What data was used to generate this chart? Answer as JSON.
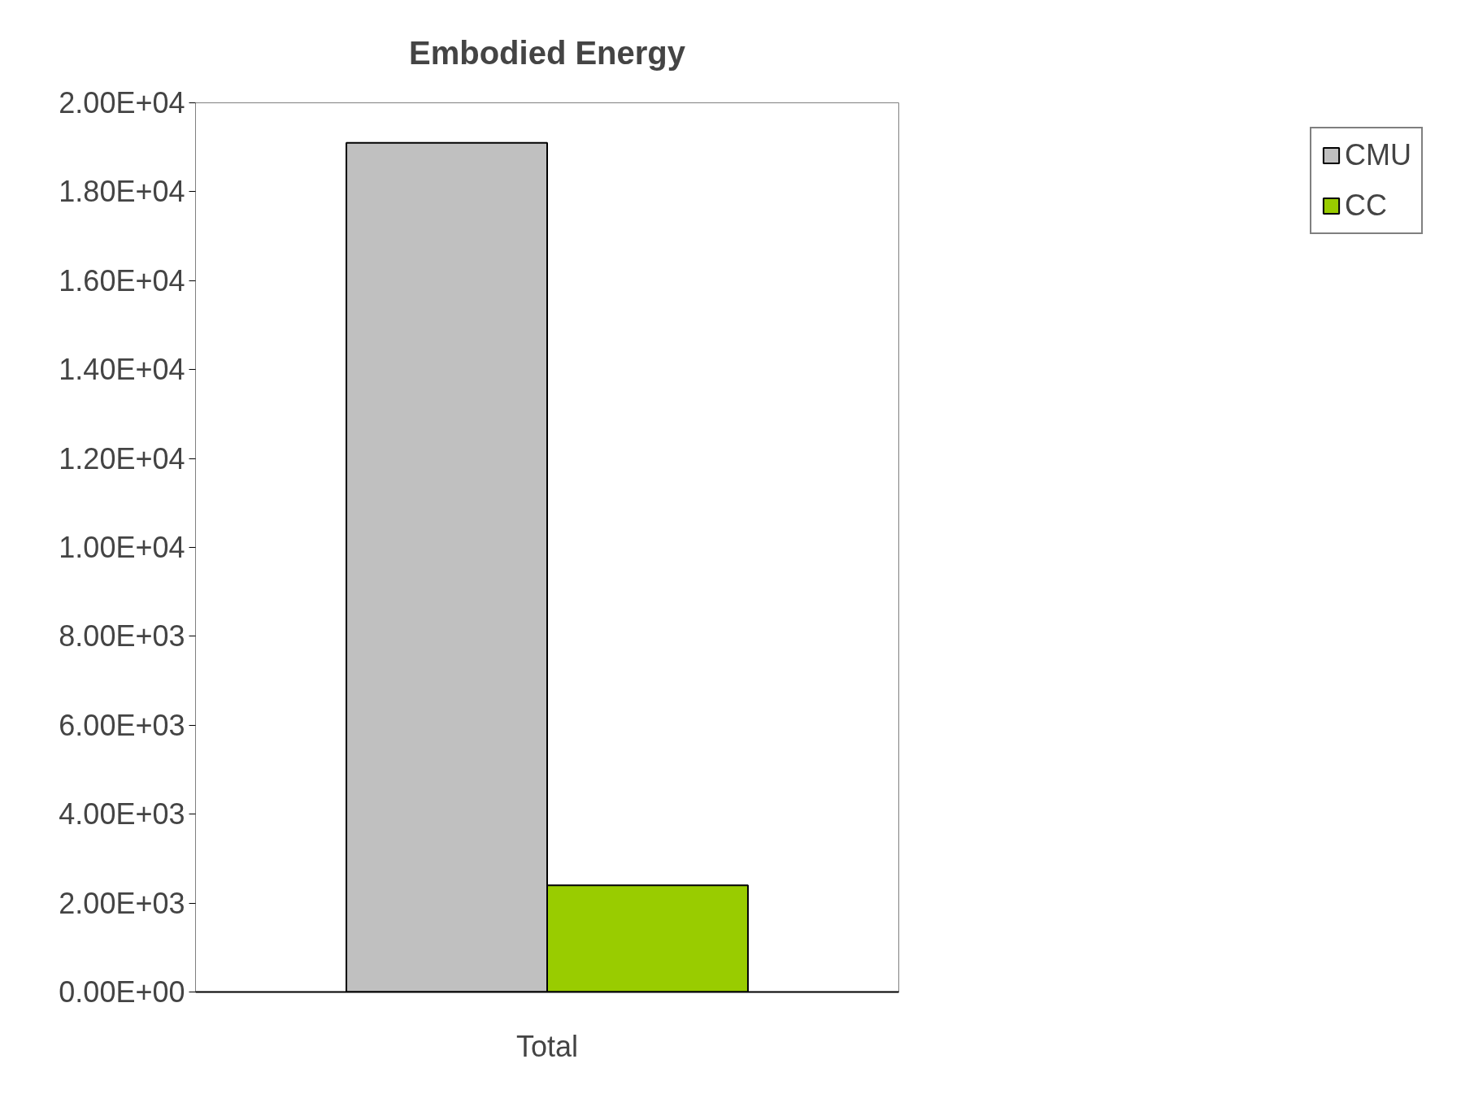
{
  "chart_data": {
    "type": "bar",
    "title": "Embodied Energy",
    "categories": [
      "Total"
    ],
    "series": [
      {
        "name": "CMU",
        "color": "#c0c0c0",
        "values": [
          19100
        ]
      },
      {
        "name": "CC",
        "color": "#99cc00",
        "values": [
          2400
        ]
      }
    ],
    "ylim": [
      0,
      20000
    ],
    "yticks": [
      {
        "value": 0,
        "label": "0.00E+00"
      },
      {
        "value": 2000,
        "label": "2.00E+03"
      },
      {
        "value": 4000,
        "label": "4.00E+03"
      },
      {
        "value": 6000,
        "label": "6.00E+03"
      },
      {
        "value": 8000,
        "label": "8.00E+03"
      },
      {
        "value": 10000,
        "label": "1.00E+04"
      },
      {
        "value": 12000,
        "label": "1.20E+04"
      },
      {
        "value": 14000,
        "label": "1.40E+04"
      },
      {
        "value": 16000,
        "label": "1.60E+04"
      },
      {
        "value": 18000,
        "label": "1.80E+04"
      },
      {
        "value": 20000,
        "label": "2.00E+04"
      }
    ],
    "grid": false,
    "legend": "right"
  }
}
